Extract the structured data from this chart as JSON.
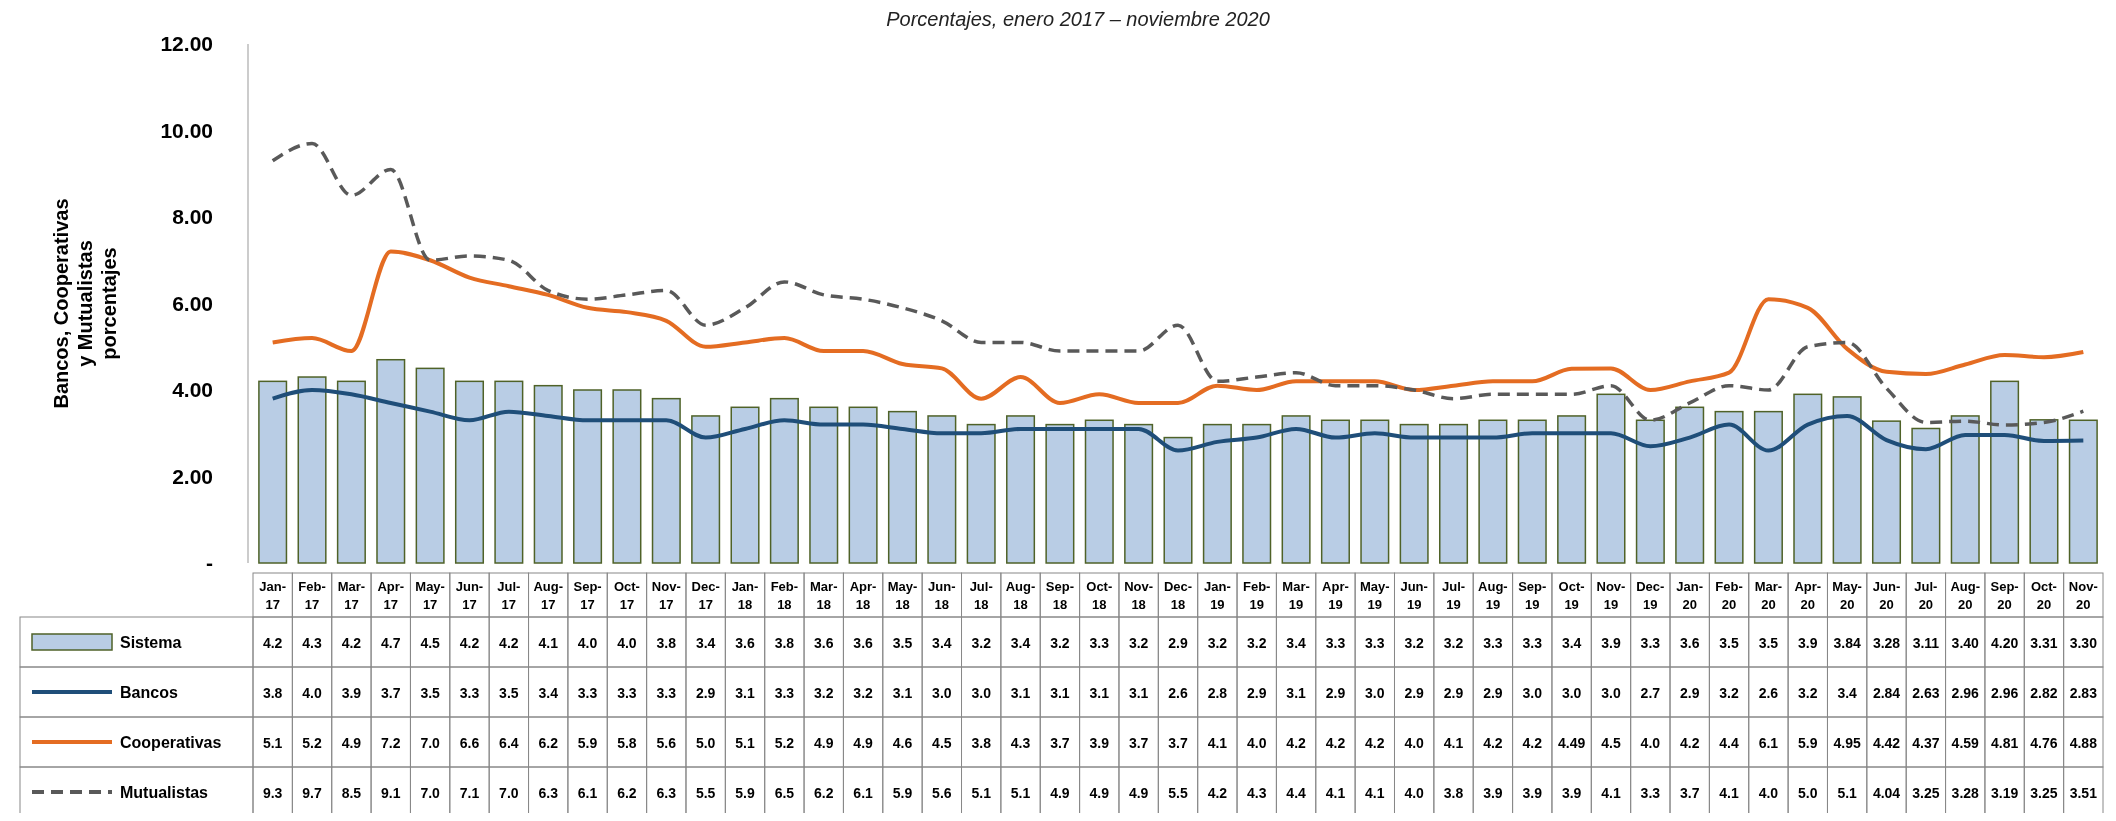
{
  "chart_data": {
    "type": "bar",
    "subtitle": "Porcentajes, enero 2017 –  noviembre 2020",
    "ylabel": "Bancos, Cooperativas y Mutualistas porcentajes",
    "categories": [
      "Jan-17",
      "Feb-17",
      "Mar-17",
      "Apr-17",
      "May-17",
      "Jun-17",
      "Jul-17",
      "Aug-17",
      "Sep-17",
      "Oct-17",
      "Nov-17",
      "Dec-17",
      "Jan-18",
      "Feb-18",
      "Mar-18",
      "Apr-18",
      "May-18",
      "Jun-18",
      "Jul-18",
      "Aug-18",
      "Sep-18",
      "Oct-18",
      "Nov-18",
      "Dec-18",
      "Jan-19",
      "Feb-19",
      "Mar-19",
      "Apr-19",
      "May-19",
      "Jun-19",
      "Jul-19",
      "Aug-19",
      "Sep-19",
      "Oct-19",
      "Nov-19",
      "Dec-19",
      "Jan-20",
      "Feb-20",
      "Mar-20",
      "Apr-20",
      "May-20",
      "Jun-20",
      "Jul-20",
      "Aug-20",
      "Sep-20",
      "Oct-20",
      "Nov-20"
    ],
    "ylim": [
      0,
      12
    ],
    "yticks": [
      {
        "value": 0,
        "label": "-"
      },
      {
        "value": 2,
        "label": "2.00"
      },
      {
        "value": 4,
        "label": "4.00"
      },
      {
        "value": 6,
        "label": "6.00"
      },
      {
        "value": 8,
        "label": "8.00"
      },
      {
        "value": 10,
        "label": "10.00"
      },
      {
        "value": 12,
        "label": "12.00"
      }
    ],
    "legend": "bottom",
    "series": [
      {
        "name": "Sistema",
        "color": "#b9cde5",
        "values": [
          4.2,
          4.3,
          4.2,
          4.7,
          4.5,
          4.2,
          4.2,
          4.1,
          4.0,
          4.0,
          3.8,
          3.4,
          3.6,
          3.8,
          3.6,
          3.6,
          3.5,
          3.4,
          3.2,
          3.4,
          3.2,
          3.3,
          3.2,
          2.9,
          3.2,
          3.2,
          3.4,
          3.3,
          3.3,
          3.2,
          3.2,
          3.3,
          3.3,
          3.4,
          3.9,
          3.3,
          3.6,
          3.5,
          3.5,
          3.9,
          3.84,
          3.28,
          3.11,
          3.4,
          4.2,
          3.31,
          3.3
        ],
        "value_labels": [
          "4.2",
          "4.3",
          "4.2",
          "4.7",
          "4.5",
          "4.2",
          "4.2",
          "4.1",
          "4.0",
          "4.0",
          "3.8",
          "3.4",
          "3.6",
          "3.8",
          "3.6",
          "3.6",
          "3.5",
          "3.4",
          "3.2",
          "3.4",
          "3.2",
          "3.3",
          "3.2",
          "2.9",
          "3.2",
          "3.2",
          "3.4",
          "3.3",
          "3.3",
          "3.2",
          "3.2",
          "3.3",
          "3.3",
          "3.4",
          "3.9",
          "3.3",
          "3.6",
          "3.5",
          "3.5",
          "3.9",
          "3.84",
          "3.28",
          "3.11",
          "3.40",
          "4.20",
          "3.31",
          "3.30"
        ]
      },
      {
        "name": "Bancos",
        "type": "line",
        "color": "#1f4e79",
        "line_style": "solid",
        "values": [
          3.8,
          4.0,
          3.9,
          3.7,
          3.5,
          3.3,
          3.5,
          3.4,
          3.3,
          3.3,
          3.3,
          2.9,
          3.1,
          3.3,
          3.2,
          3.2,
          3.1,
          3.0,
          3.0,
          3.1,
          3.1,
          3.1,
          3.1,
          2.6,
          2.8,
          2.9,
          3.1,
          2.9,
          3.0,
          2.9,
          2.9,
          2.9,
          3.0,
          3.0,
          3.0,
          2.7,
          2.9,
          3.2,
          2.6,
          3.2,
          3.4,
          2.84,
          2.63,
          2.96,
          2.96,
          2.82,
          2.83
        ],
        "value_labels": [
          "3.8",
          "4.0",
          "3.9",
          "3.7",
          "3.5",
          "3.3",
          "3.5",
          "3.4",
          "3.3",
          "3.3",
          "3.3",
          "2.9",
          "3.1",
          "3.3",
          "3.2",
          "3.2",
          "3.1",
          "3.0",
          "3.0",
          "3.1",
          "3.1",
          "3.1",
          "3.1",
          "2.6",
          "2.8",
          "2.9",
          "3.1",
          "2.9",
          "3.0",
          "2.9",
          "2.9",
          "2.9",
          "3.0",
          "3.0",
          "3.0",
          "2.7",
          "2.9",
          "3.2",
          "2.6",
          "3.2",
          "3.4",
          "2.84",
          "2.63",
          "2.96",
          "2.96",
          "2.82",
          "2.83"
        ]
      },
      {
        "name": "Cooperativas",
        "type": "line",
        "color": "#e46c22",
        "line_style": "solid",
        "values": [
          5.1,
          5.2,
          4.9,
          7.2,
          7.0,
          6.6,
          6.4,
          6.2,
          5.9,
          5.8,
          5.6,
          5.0,
          5.1,
          5.2,
          4.9,
          4.9,
          4.6,
          4.5,
          3.8,
          4.3,
          3.7,
          3.9,
          3.7,
          3.7,
          4.1,
          4.0,
          4.2,
          4.2,
          4.2,
          4.0,
          4.1,
          4.2,
          4.2,
          4.49,
          4.5,
          4.0,
          4.2,
          4.4,
          6.1,
          5.9,
          4.95,
          4.42,
          4.37,
          4.59,
          4.81,
          4.76,
          4.88
        ],
        "value_labels": [
          "5.1",
          "5.2",
          "4.9",
          "7.2",
          "7.0",
          "6.6",
          "6.4",
          "6.2",
          "5.9",
          "5.8",
          "5.6",
          "5.0",
          "5.1",
          "5.2",
          "4.9",
          "4.9",
          "4.6",
          "4.5",
          "3.8",
          "4.3",
          "3.7",
          "3.9",
          "3.7",
          "3.7",
          "4.1",
          "4.0",
          "4.2",
          "4.2",
          "4.2",
          "4.0",
          "4.1",
          "4.2",
          "4.2",
          "4.49",
          "4.5",
          "4.0",
          "4.2",
          "4.4",
          "6.1",
          "5.9",
          "4.95",
          "4.42",
          "4.37",
          "4.59",
          "4.81",
          "4.76",
          "4.88"
        ]
      },
      {
        "name": "Mutualistas",
        "type": "line",
        "color": "#595959",
        "line_style": "dashed",
        "values": [
          9.3,
          9.7,
          8.5,
          9.1,
          7.0,
          7.1,
          7.0,
          6.3,
          6.1,
          6.2,
          6.3,
          5.5,
          5.9,
          6.5,
          6.2,
          6.1,
          5.9,
          5.6,
          5.1,
          5.1,
          4.9,
          4.9,
          4.9,
          5.5,
          4.2,
          4.3,
          4.4,
          4.1,
          4.1,
          4.0,
          3.8,
          3.9,
          3.9,
          3.9,
          4.1,
          3.3,
          3.7,
          4.1,
          4.0,
          5.0,
          5.1,
          4.04,
          3.25,
          3.28,
          3.19,
          3.25,
          3.51
        ],
        "value_labels": [
          "9.3",
          "9.7",
          "8.5",
          "9.1",
          "7.0",
          "7.1",
          "7.0",
          "6.3",
          "6.1",
          "6.2",
          "6.3",
          "5.5",
          "5.9",
          "6.5",
          "6.2",
          "6.1",
          "5.9",
          "5.6",
          "5.1",
          "5.1",
          "4.9",
          "4.9",
          "4.9",
          "5.5",
          "4.2",
          "4.3",
          "4.4",
          "4.1",
          "4.1",
          "4.0",
          "3.8",
          "3.9",
          "3.9",
          "3.9",
          "4.1",
          "3.3",
          "3.7",
          "4.1",
          "4.0",
          "5.0",
          "5.1",
          "4.04",
          "3.25",
          "3.28",
          "3.19",
          "3.25",
          "3.51"
        ]
      }
    ]
  }
}
